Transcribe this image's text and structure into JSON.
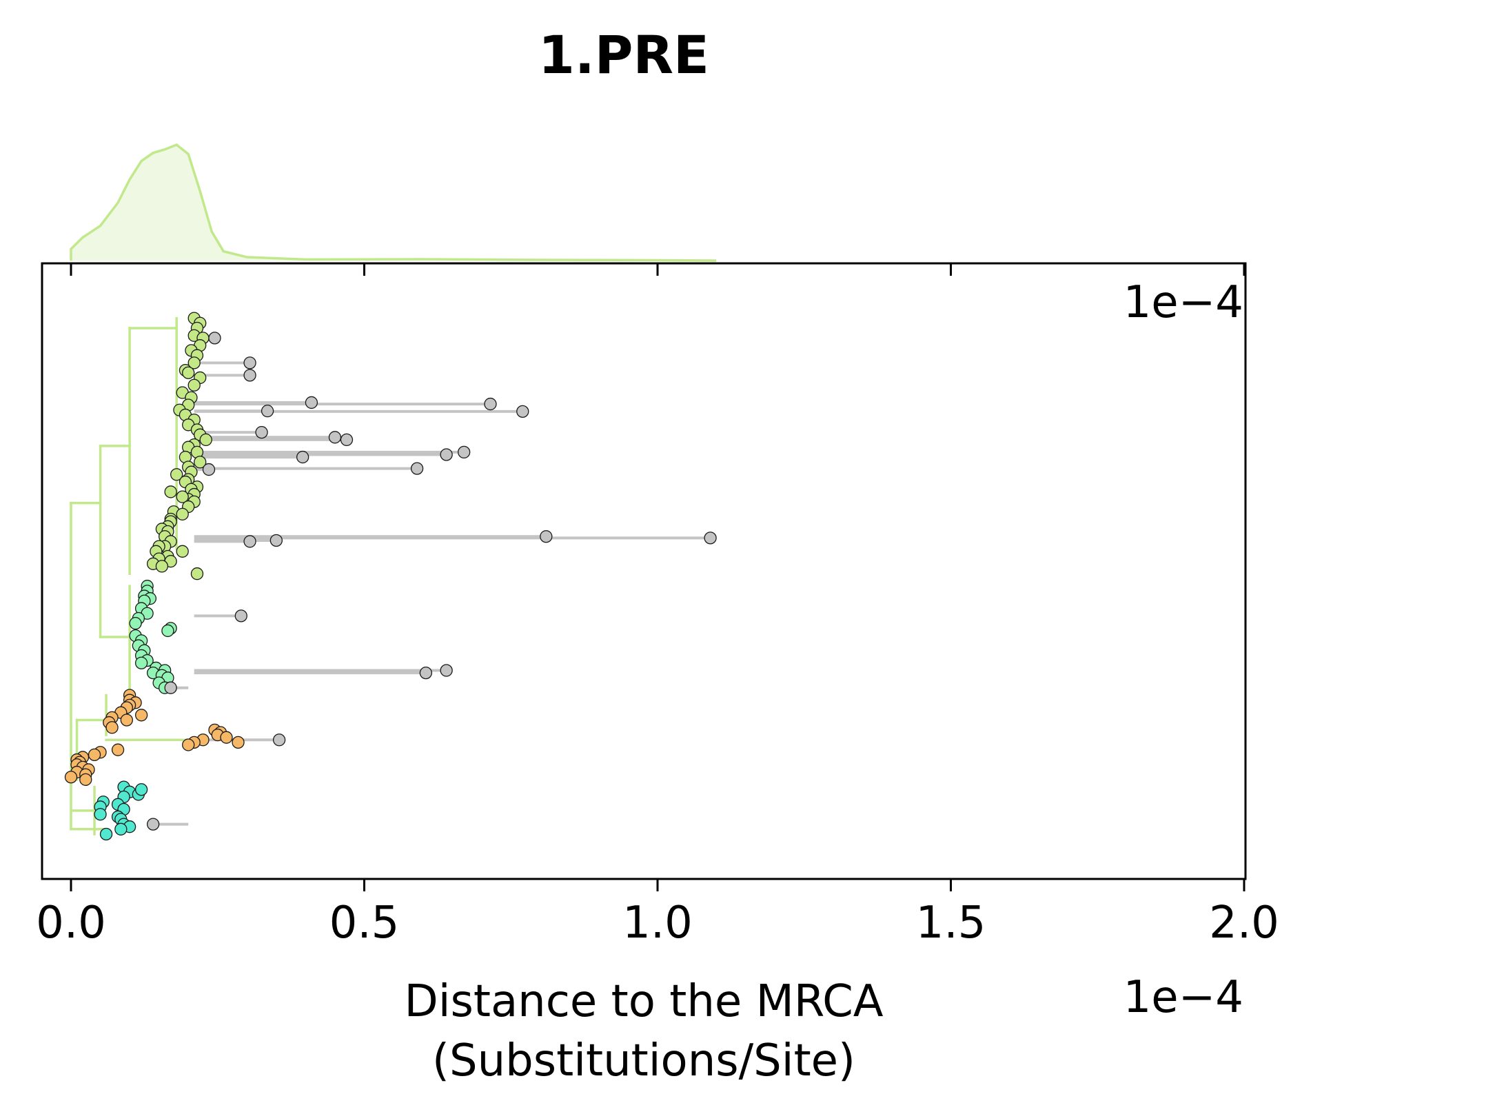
{
  "chart_data": {
    "type": "scatter",
    "title": "1.PRE",
    "xlabel_line1": "Distance to the MRCA",
    "xlabel_line2": "(Substitutions/Site)",
    "x_offset_label": "1e−4",
    "axis_corner_label": "1e−4",
    "x_scale": 0.0001,
    "xlim": [
      -0.05,
      2.0
    ],
    "x_ticks": [
      0.0,
      0.5,
      1.0,
      1.5,
      2.0
    ],
    "x_tick_labels": [
      "0.0",
      "0.5",
      "1.0",
      "1.5",
      "2.0"
    ],
    "y_ticks": "none",
    "grid": false,
    "colors": {
      "tree": "#c2e88c",
      "density_line": "#c2e88c",
      "density_fill": "#eef8e2",
      "outlier_line": "#c4c4c4",
      "clade_lime": "#c4e886",
      "clade_mint": "#93f5b5",
      "clade_orange": "#f6b766",
      "clade_cyan": "#50e8cf",
      "outlier": "#c4c4c4"
    },
    "density": {
      "x": [
        0.0,
        0.02,
        0.05,
        0.08,
        0.1,
        0.12,
        0.14,
        0.16,
        0.18,
        0.2,
        0.22,
        0.24,
        0.26,
        0.3,
        0.4,
        0.6,
        0.8,
        1.0,
        1.1
      ],
      "y": [
        0.1,
        0.2,
        0.3,
        0.5,
        0.7,
        0.86,
        0.93,
        0.96,
        1.0,
        0.92,
        0.6,
        0.25,
        0.08,
        0.03,
        0.01,
        0.012,
        0.006,
        0.003,
        0.0
      ]
    },
    "series": [
      {
        "group": "clade_lime",
        "x": [
          0.21,
          0.22,
          0.215,
          0.21,
          0.225,
          0.22,
          0.205,
          0.215,
          0.21,
          0.195,
          0.2,
          0.22,
          0.21,
          0.19,
          0.205,
          0.2,
          0.185,
          0.195,
          0.21,
          0.2,
          0.215,
          0.22,
          0.23,
          0.21,
          0.2,
          0.215,
          0.195,
          0.22,
          0.2,
          0.205,
          0.18,
          0.2,
          0.195,
          0.215,
          0.205,
          0.21,
          0.2,
          0.17,
          0.19,
          0.21,
          0.2,
          0.175,
          0.19,
          0.17,
          0.17,
          0.165,
          0.155,
          0.165,
          0.16,
          0.17,
          0.16,
          0.15,
          0.145,
          0.19,
          0.165,
          0.15,
          0.17,
          0.14,
          0.155,
          0.215
        ],
        "y": [
          0.03,
          0.04,
          0.05,
          0.065,
          0.07,
          0.085,
          0.095,
          0.105,
          0.12,
          0.135,
          0.14,
          0.15,
          0.165,
          0.18,
          0.19,
          0.205,
          0.215,
          0.225,
          0.235,
          0.245,
          0.255,
          0.265,
          0.275,
          0.285,
          0.29,
          0.3,
          0.31,
          0.32,
          0.33,
          0.34,
          0.345,
          0.355,
          0.36,
          0.37,
          0.375,
          0.385,
          0.395,
          0.38,
          0.39,
          0.4,
          0.41,
          0.42,
          0.425,
          0.435,
          0.44,
          0.45,
          0.455,
          0.46,
          0.47,
          0.48,
          0.49,
          0.49,
          0.5,
          0.5,
          0.51,
          0.515,
          0.52,
          0.525,
          0.53,
          0.545
        ]
      },
      {
        "group": "clade_mint",
        "x": [
          0.13,
          0.13,
          0.125,
          0.135,
          0.125,
          0.12,
          0.13,
          0.115,
          0.11,
          0.17,
          0.165,
          0.11,
          0.12,
          0.115,
          0.125,
          0.12,
          0.13,
          0.12,
          0.145,
          0.16,
          0.14,
          0.155,
          0.165,
          0.15,
          0.16
        ],
        "y": [
          0.57,
          0.58,
          0.59,
          0.595,
          0.6,
          0.615,
          0.625,
          0.635,
          0.645,
          0.655,
          0.66,
          0.67,
          0.68,
          0.69,
          0.7,
          0.71,
          0.72,
          0.725,
          0.735,
          0.74,
          0.745,
          0.75,
          0.755,
          0.765,
          0.775
        ]
      },
      {
        "group": "clade_orange",
        "x": [
          0.1,
          0.1,
          0.11,
          0.1,
          0.095,
          0.085,
          0.12,
          0.07,
          0.095,
          0.065,
          0.07,
          0.245,
          0.255,
          0.25,
          0.265,
          0.225,
          0.21,
          0.2,
          0.285,
          0.08,
          0.05,
          0.04,
          0.02,
          0.01,
          0.015,
          0.01,
          0.02,
          0.03,
          0.01,
          0.025,
          0.0,
          0.025
        ],
        "y": [
          0.79,
          0.8,
          0.805,
          0.81,
          0.815,
          0.825,
          0.83,
          0.835,
          0.84,
          0.845,
          0.855,
          0.86,
          0.865,
          0.87,
          0.875,
          0.88,
          0.885,
          0.89,
          0.885,
          0.9,
          0.905,
          0.91,
          0.915,
          0.92,
          0.925,
          0.93,
          0.935,
          0.94,
          0.945,
          0.95,
          0.955,
          0.96
        ]
      },
      {
        "group": "clade_cyan",
        "x": [
          0.09,
          0.1,
          0.115,
          0.12,
          0.09,
          0.055,
          0.05,
          0.08,
          0.09,
          0.05,
          0.08,
          0.085,
          0.09,
          0.1,
          0.085,
          0.06
        ],
        "y": [
          0.975,
          0.985,
          0.99,
          0.98,
          0.995,
          1.005,
          1.015,
          1.01,
          1.02,
          1.03,
          1.035,
          1.04,
          1.05,
          1.055,
          1.06,
          1.07
        ]
      },
      {
        "group": "outlier",
        "x": [
          0.245,
          0.305,
          0.305,
          0.41,
          0.715,
          0.77,
          0.335,
          0.325,
          0.45,
          0.47,
          0.67,
          0.64,
          0.395,
          0.235,
          0.59,
          0.81,
          1.09,
          0.35,
          0.305,
          0.29,
          0.64,
          0.605,
          0.17,
          0.355,
          0.14
        ],
        "y": [
          0.07,
          0.12,
          0.145,
          0.2,
          0.203,
          0.218,
          0.217,
          0.26,
          0.27,
          0.275,
          0.3,
          0.305,
          0.31,
          0.335,
          0.333,
          0.47,
          0.473,
          0.478,
          0.48,
          0.63,
          0.74,
          0.745,
          0.775,
          0.88,
          1.05
        ]
      }
    ]
  }
}
